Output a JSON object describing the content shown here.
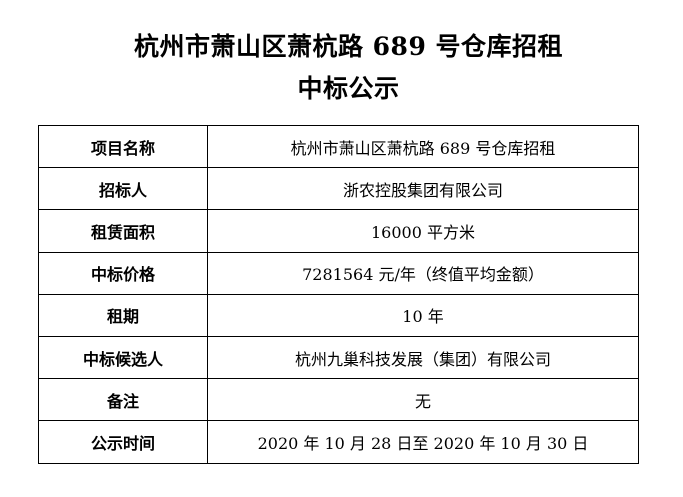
{
  "page": {
    "title_line1": "杭州市萧山区萧杭路 689 号仓库招租",
    "title_line2": "中标公示"
  },
  "table": {
    "rows": [
      {
        "label": "项目名称",
        "value": "杭州市萧山区萧杭路 689 号仓库招租"
      },
      {
        "label": "招标人",
        "value": "浙农控股集团有限公司"
      },
      {
        "label": "租赁面积",
        "value": "16000 平方米"
      },
      {
        "label": "中标价格",
        "value": "7281564 元/年（终值平均金额）"
      },
      {
        "label": "租期",
        "value": "10 年"
      },
      {
        "label": "中标候选人",
        "value": "杭州九巢科技发展（集团）有限公司"
      },
      {
        "label": "备注",
        "value": "无"
      },
      {
        "label": "公示时间",
        "value": "2020 年 10 月 28 日至 2020 年 10 月 30 日"
      }
    ]
  },
  "colors": {
    "text": "#000000",
    "border": "#000000",
    "background": "#ffffff"
  }
}
